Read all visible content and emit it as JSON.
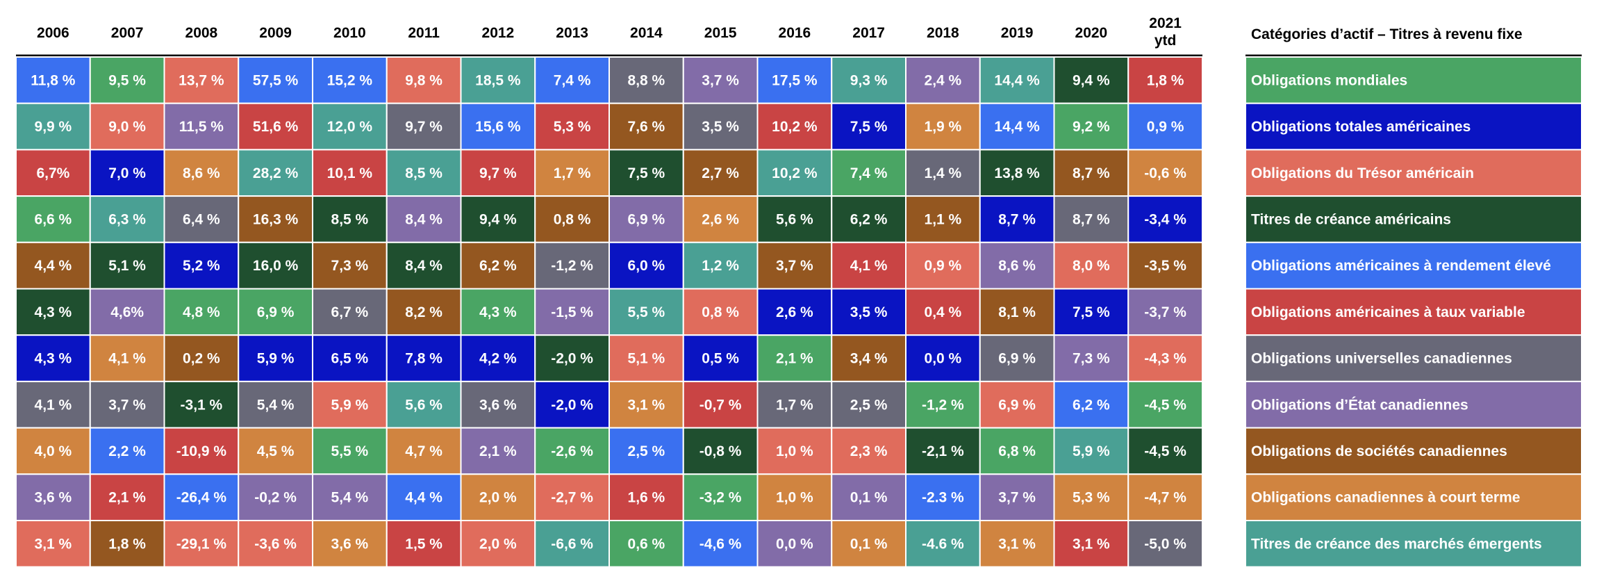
{
  "chart_data": {
    "type": "table",
    "years": [
      "2006",
      "2007",
      "2008",
      "2009",
      "2010",
      "2011",
      "2012",
      "2013",
      "2014",
      "2015",
      "2016",
      "2017",
      "2018",
      "2019",
      "2020",
      "2021\nytd"
    ],
    "legend_title": "Catégories d’actif – Titres à revenu fixe",
    "categories": [
      {
        "key": "GLB",
        "name": "Obligations mondiales",
        "color": "#4aa564"
      },
      {
        "key": "AGG",
        "name": "Obligations totales américaines",
        "color": "#0a14c2"
      },
      {
        "key": "UST",
        "name": "Obligations du Trésor américain",
        "color": "#e06c5c"
      },
      {
        "key": "USC",
        "name": "Titres de créance américains",
        "color": "#1f4f2f"
      },
      {
        "key": "HY",
        "name": "Obligations américaines à rendement élevé",
        "color": "#3a70f0"
      },
      {
        "key": "FLT",
        "name": "Obligations américaines à taux variable",
        "color": "#c94444"
      },
      {
        "key": "CU",
        "name": "Obligations universelles canadiennes",
        "color": "#686878"
      },
      {
        "key": "CG",
        "name": "Obligations d’État canadiennes",
        "color": "#826ca8"
      },
      {
        "key": "CC",
        "name": "Obligations de sociétés canadiennes",
        "color": "#945720"
      },
      {
        "key": "CST",
        "name": "Obligations canadiennes à court terme",
        "color": "#d08440"
      },
      {
        "key": "EM",
        "name": "Titres de créance des marchés émergents",
        "color": "#4aa094"
      }
    ],
    "columns": [
      {
        "year": "2006",
        "cells": [
          [
            "HY",
            "11,8 %"
          ],
          [
            "EM",
            "9,9 %"
          ],
          [
            "FLT",
            "6,7%"
          ],
          [
            "GLB",
            "6,6 %"
          ],
          [
            "CC",
            "4,4 %"
          ],
          [
            "USC",
            "4,3 %"
          ],
          [
            "AGG",
            "4,3 %"
          ],
          [
            "CU",
            "4,1 %"
          ],
          [
            "CST",
            "4,0 %"
          ],
          [
            "CG",
            "3,6 %"
          ],
          [
            "UST",
            "3,1 %"
          ]
        ]
      },
      {
        "year": "2007",
        "cells": [
          [
            "GLB",
            "9,5 %"
          ],
          [
            "UST",
            "9,0 %"
          ],
          [
            "AGG",
            "7,0 %"
          ],
          [
            "EM",
            "6,3 %"
          ],
          [
            "USC",
            "5,1 %"
          ],
          [
            "CG",
            "4,6%"
          ],
          [
            "CST",
            "4,1 %"
          ],
          [
            "CU",
            "3,7 %"
          ],
          [
            "HY",
            "2,2 %"
          ],
          [
            "FLT",
            "2,1 %"
          ],
          [
            "CC",
            "1,8 %"
          ]
        ]
      },
      {
        "year": "2008",
        "cells": [
          [
            "UST",
            "13,7 %"
          ],
          [
            "CG",
            "11,5 %"
          ],
          [
            "CST",
            "8,6 %"
          ],
          [
            "CU",
            "6,4 %"
          ],
          [
            "AGG",
            "5,2 %"
          ],
          [
            "GLB",
            "4,8 %"
          ],
          [
            "CC",
            "0,2 %"
          ],
          [
            "USC",
            "-3,1 %"
          ],
          [
            "FLT",
            "-10,9 %"
          ],
          [
            "HY",
            "-26,4 %"
          ],
          [
            "UST",
            "-29,1 %"
          ]
        ]
      },
      {
        "year": "2009",
        "cells": [
          [
            "HY",
            "57,5 %"
          ],
          [
            "FLT",
            "51,6 %"
          ],
          [
            "EM",
            "28,2 %"
          ],
          [
            "CC",
            "16,3 %"
          ],
          [
            "USC",
            "16,0 %"
          ],
          [
            "GLB",
            "6,9 %"
          ],
          [
            "AGG",
            "5,9 %"
          ],
          [
            "CU",
            "5,4 %"
          ],
          [
            "CST",
            "4,5 %"
          ],
          [
            "CG",
            "-0,2 %"
          ],
          [
            "UST",
            "-3,6 %"
          ]
        ]
      },
      {
        "year": "2010",
        "cells": [
          [
            "HY",
            "15,2 %"
          ],
          [
            "EM",
            "12,0 %"
          ],
          [
            "FLT",
            "10,1 %"
          ],
          [
            "USC",
            "8,5 %"
          ],
          [
            "CC",
            "7,3 %"
          ],
          [
            "CU",
            "6,7 %"
          ],
          [
            "AGG",
            "6,5 %"
          ],
          [
            "UST",
            "5,9 %"
          ],
          [
            "GLB",
            "5,5 %"
          ],
          [
            "CG",
            "5,4 %"
          ],
          [
            "CST",
            "3,6 %"
          ]
        ]
      },
      {
        "year": "2011",
        "cells": [
          [
            "UST",
            "9,8 %"
          ],
          [
            "CU",
            "9,7 %"
          ],
          [
            "EM",
            "8,5 %"
          ],
          [
            "CG",
            "8,4 %"
          ],
          [
            "USC",
            "8,4 %"
          ],
          [
            "CC",
            "8,2 %"
          ],
          [
            "AGG",
            "7,8 %"
          ],
          [
            "EM",
            "5,6 %"
          ],
          [
            "CST",
            "4,7 %"
          ],
          [
            "HY",
            "4,4 %"
          ],
          [
            "FLT",
            "1,5 %"
          ]
        ]
      },
      {
        "year": "2012",
        "cells": [
          [
            "EM",
            "18,5 %"
          ],
          [
            "HY",
            "15,6 %"
          ],
          [
            "FLT",
            "9,7 %"
          ],
          [
            "USC",
            "9,4 %"
          ],
          [
            "CC",
            "6,2 %"
          ],
          [
            "GLB",
            "4,3 %"
          ],
          [
            "AGG",
            "4,2 %"
          ],
          [
            "CU",
            "3,6 %"
          ],
          [
            "CG",
            "2,1 %"
          ],
          [
            "CST",
            "2,0 %"
          ],
          [
            "UST",
            "2,0 %"
          ]
        ]
      },
      {
        "year": "2013",
        "cells": [
          [
            "HY",
            "7,4 %"
          ],
          [
            "FLT",
            "5,3 %"
          ],
          [
            "CST",
            "1,7 %"
          ],
          [
            "CC",
            "0,8 %"
          ],
          [
            "CU",
            "-1,2 %"
          ],
          [
            "CG",
            "-1,5 %"
          ],
          [
            "USC",
            "-2,0 %"
          ],
          [
            "AGG",
            "-2,0 %"
          ],
          [
            "GLB",
            "-2,6 %"
          ],
          [
            "UST",
            "-2,7 %"
          ],
          [
            "EM",
            "-6,6 %"
          ]
        ]
      },
      {
        "year": "2014",
        "cells": [
          [
            "CU",
            "8,8 %"
          ],
          [
            "CC",
            "7,6 %"
          ],
          [
            "USC",
            "7,5 %"
          ],
          [
            "CG",
            "6,9 %"
          ],
          [
            "AGG",
            "6,0 %"
          ],
          [
            "EM",
            "5,5 %"
          ],
          [
            "UST",
            "5,1 %"
          ],
          [
            "CST",
            "3,1 %"
          ],
          [
            "HY",
            "2,5 %"
          ],
          [
            "FLT",
            "1,6 %"
          ],
          [
            "GLB",
            "0,6 %"
          ]
        ]
      },
      {
        "year": "2015",
        "cells": [
          [
            "CG",
            "3,7 %"
          ],
          [
            "CU",
            "3,5 %"
          ],
          [
            "CC",
            "2,7 %"
          ],
          [
            "CST",
            "2,6 %"
          ],
          [
            "EM",
            "1,2 %"
          ],
          [
            "UST",
            "0,8 %"
          ],
          [
            "AGG",
            "0,5 %"
          ],
          [
            "FLT",
            "-0,7 %"
          ],
          [
            "USC",
            "-0,8 %"
          ],
          [
            "GLB",
            "-3,2 %"
          ],
          [
            "HY",
            "-4,6 %"
          ]
        ]
      },
      {
        "year": "2016",
        "cells": [
          [
            "HY",
            "17,5 %"
          ],
          [
            "FLT",
            "10,2 %"
          ],
          [
            "EM",
            "10,2 %"
          ],
          [
            "USC",
            "5,6 %"
          ],
          [
            "CC",
            "3,7 %"
          ],
          [
            "AGG",
            "2,6 %"
          ],
          [
            "GLB",
            "2,1 %"
          ],
          [
            "CU",
            "1,7 %"
          ],
          [
            "UST",
            "1,0 %"
          ],
          [
            "CST",
            "1,0 %"
          ],
          [
            "CG",
            "0,0 %"
          ]
        ]
      },
      {
        "year": "2017",
        "cells": [
          [
            "EM",
            "9,3 %"
          ],
          [
            "AGG",
            "7,5 %"
          ],
          [
            "GLB",
            "7,4 %"
          ],
          [
            "USC",
            "6,2 %"
          ],
          [
            "FLT",
            "4,1 %"
          ],
          [
            "AGG",
            "3,5 %"
          ],
          [
            "CC",
            "3,4 %"
          ],
          [
            "CU",
            "2,5 %"
          ],
          [
            "UST",
            "2,3 %"
          ],
          [
            "CG",
            "0,1 %"
          ],
          [
            "CST",
            "0,1 %"
          ]
        ]
      },
      {
        "year": "2018",
        "cells": [
          [
            "CG",
            "2,4 %"
          ],
          [
            "CST",
            "1,9 %"
          ],
          [
            "CU",
            "1,4 %"
          ],
          [
            "CC",
            "1,1 %"
          ],
          [
            "UST",
            "0,9 %"
          ],
          [
            "FLT",
            "0,4 %"
          ],
          [
            "AGG",
            "0,0 %"
          ],
          [
            "GLB",
            "-1,2 %"
          ],
          [
            "USC",
            "-2,1 %"
          ],
          [
            "HY",
            "-2.3 %"
          ],
          [
            "EM",
            "-4.6 %"
          ]
        ]
      },
      {
        "year": "2019",
        "cells": [
          [
            "EM",
            "14,4 %"
          ],
          [
            "HY",
            "14,4 %"
          ],
          [
            "USC",
            "13,8 %"
          ],
          [
            "AGG",
            "8,7 %"
          ],
          [
            "CG",
            "8,6 %"
          ],
          [
            "CC",
            "8,1 %"
          ],
          [
            "CU",
            "6,9 %"
          ],
          [
            "UST",
            "6,9 %"
          ],
          [
            "GLB",
            "6,8 %"
          ],
          [
            "CG",
            "3,7 %"
          ],
          [
            "CST",
            "3,1 %"
          ]
        ]
      },
      {
        "year": "2020",
        "cells": [
          [
            "USC",
            "9,4 %"
          ],
          [
            "GLB",
            "9,2 %"
          ],
          [
            "CC",
            "8,7 %"
          ],
          [
            "CU",
            "8,7 %"
          ],
          [
            "UST",
            "8,0 %"
          ],
          [
            "AGG",
            "7,5 %"
          ],
          [
            "CG",
            "7,3 %"
          ],
          [
            "HY",
            "6,2 %"
          ],
          [
            "EM",
            "5,9 %"
          ],
          [
            "CST",
            "5,3 %"
          ],
          [
            "FLT",
            "3,1 %"
          ]
        ]
      },
      {
        "year": "2021 ytd",
        "cells": [
          [
            "FLT",
            "1,8 %"
          ],
          [
            "HY",
            "0,9 %"
          ],
          [
            "CST",
            "-0,6 %"
          ],
          [
            "AGG",
            "-3,4 %"
          ],
          [
            "CC",
            "-3,5 %"
          ],
          [
            "CG",
            "-3,7 %"
          ],
          [
            "UST",
            "-4,3 %"
          ],
          [
            "GLB",
            "-4,5 %"
          ],
          [
            "USC",
            "-4,5 %"
          ],
          [
            "CST",
            "-4,7 %"
          ],
          [
            "CU",
            "-5,0 %"
          ]
        ]
      }
    ]
  }
}
